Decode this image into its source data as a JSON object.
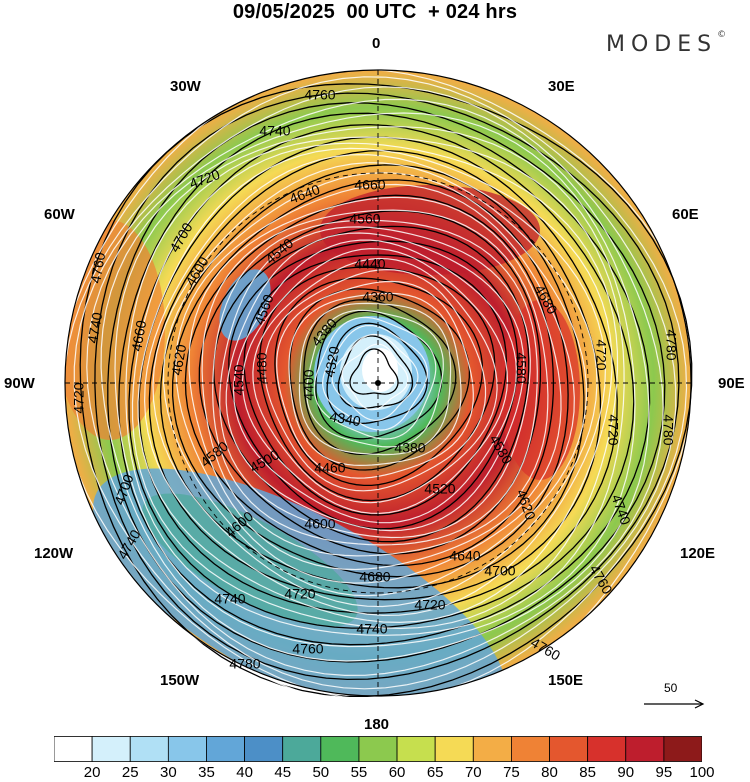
{
  "title": "09/05/2025  00 UTC  + 024 hrs",
  "brand": "MODES",
  "brand_mark": "©",
  "longitude_labels": {
    "top": "0",
    "top_left": "30W",
    "top_right": "30E",
    "upper_left": "60W",
    "upper_right": "60E",
    "left": "90W",
    "right": "90E",
    "lower_left": "120W",
    "lower_right": "120E",
    "bottom_left": "150W",
    "bottom_right": "150E",
    "bottom": "180"
  },
  "reference_vector_label": "50",
  "colorbar": {
    "colors": [
      "#ffffff",
      "#d4f0fb",
      "#b0e0f5",
      "#88c6ea",
      "#62a6d8",
      "#4c8fc7",
      "#4ca99a",
      "#4fb95a",
      "#8cc94e",
      "#c6df4e",
      "#f5da55",
      "#f3ad46",
      "#ef8235",
      "#e4572e",
      "#d7312c",
      "#be1e2d",
      "#8d1a1a"
    ],
    "tick_labels": [
      "20",
      "25",
      "30",
      "35",
      "40",
      "45",
      "50",
      "55",
      "60",
      "65",
      "70",
      "75",
      "80",
      "85",
      "90",
      "95",
      "100"
    ]
  },
  "contour_labels": [
    "4760",
    "4740",
    "4720",
    "4700",
    "4680",
    "4660",
    "4640",
    "4620",
    "4600",
    "4580",
    "4560",
    "4540",
    "4520",
    "4500",
    "4480",
    "4460",
    "4440",
    "4400",
    "4380",
    "4360",
    "4340",
    "4320",
    "4780"
  ],
  "map_data": {
    "projection": "south polar stereographic",
    "field_shaded": "wind speed",
    "field_contoured": "geopotential height",
    "color_levels": [
      20,
      25,
      30,
      35,
      40,
      45,
      50,
      55,
      60,
      65,
      70,
      75,
      80,
      85,
      90,
      95,
      100
    ],
    "contour_levels": [
      4320,
      4340,
      4360,
      4380,
      4400,
      4440,
      4460,
      4480,
      4500,
      4520,
      4540,
      4560,
      4580,
      4600,
      4620,
      4640,
      4660,
      4680,
      4700,
      4720,
      4740,
      4760,
      4780
    ]
  }
}
